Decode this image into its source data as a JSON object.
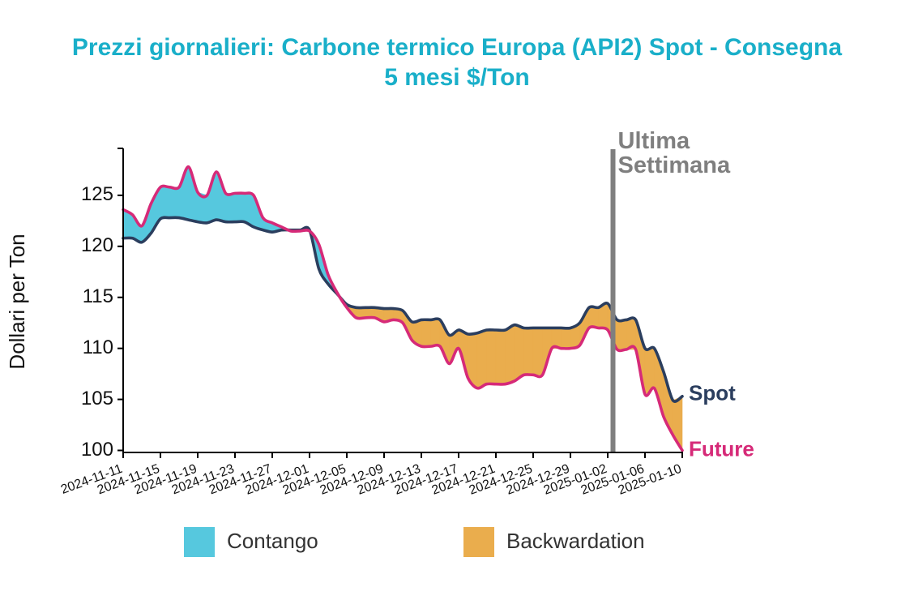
{
  "chart_data": {
    "type": "area",
    "title_lines": [
      "Prezzi giornalieri: Carbone termico Europa (API2) Spot - Consegna",
      "5 mesi $/Ton"
    ],
    "ylabel": "Dollari per Ton",
    "xlabel": "",
    "ylim": [
      99.8,
      129.6
    ],
    "yticks": [
      100,
      105,
      110,
      115,
      120,
      125
    ],
    "xticks": [
      "2024-11-11",
      "2024-11-15",
      "2024-11-19",
      "2024-11-23",
      "2024-11-27",
      "2024-12-01",
      "2024-12-05",
      "2024-12-09",
      "2024-12-13",
      "2024-12-17",
      "2024-12-21",
      "2024-12-25",
      "2024-12-29",
      "2025-01-02",
      "2025-01-06",
      "2025-01-10"
    ],
    "x": [
      "2024-11-11",
      "2024-11-12",
      "2024-11-13",
      "2024-11-14",
      "2024-11-15",
      "2024-11-16",
      "2024-11-17",
      "2024-11-18",
      "2024-11-19",
      "2024-11-20",
      "2024-11-21",
      "2024-11-22",
      "2024-11-23",
      "2024-11-24",
      "2024-11-25",
      "2024-11-26",
      "2024-11-27",
      "2024-11-28",
      "2024-11-29",
      "2024-11-30",
      "2024-12-01",
      "2024-12-02",
      "2024-12-03",
      "2024-12-04",
      "2024-12-05",
      "2024-12-06",
      "2024-12-07",
      "2024-12-08",
      "2024-12-09",
      "2024-12-10",
      "2024-12-11",
      "2024-12-12",
      "2024-12-13",
      "2024-12-14",
      "2024-12-15",
      "2024-12-16",
      "2024-12-17",
      "2024-12-18",
      "2024-12-19",
      "2024-12-20",
      "2024-12-21",
      "2024-12-22",
      "2024-12-23",
      "2024-12-24",
      "2024-12-25",
      "2024-12-26",
      "2024-12-27",
      "2024-12-28",
      "2024-12-29",
      "2024-12-30",
      "2024-12-31",
      "2025-01-01",
      "2025-01-02",
      "2025-01-03",
      "2025-01-04",
      "2025-01-05",
      "2025-01-06",
      "2025-01-07",
      "2025-01-08",
      "2025-01-09",
      "2025-01-10"
    ],
    "series": [
      {
        "name": "Spot",
        "color": "#2b3e5e",
        "values": [
          120.8,
          120.8,
          120.4,
          121.3,
          122.7,
          122.8,
          122.8,
          122.6,
          122.4,
          122.3,
          122.6,
          122.4,
          122.4,
          122.4,
          121.9,
          121.6,
          121.4,
          121.6,
          121.6,
          121.6,
          121.6,
          117.8,
          116.3,
          115.3,
          114.3,
          114.0,
          114.0,
          114.0,
          113.9,
          113.9,
          113.7,
          112.6,
          112.8,
          112.8,
          112.8,
          111.3,
          111.8,
          111.4,
          111.5,
          111.8,
          111.8,
          111.8,
          112.3,
          112.0,
          112.0,
          112.0,
          112.0,
          112.0,
          112.0,
          112.5,
          114.0,
          114.0,
          114.4,
          112.8,
          112.8,
          112.8,
          110.0,
          110.0,
          107.7,
          104.9,
          105.3
        ]
      },
      {
        "name": "Future",
        "color": "#d62a78",
        "values": [
          123.6,
          123.1,
          122.0,
          124.2,
          125.8,
          125.8,
          125.8,
          127.8,
          125.3,
          125.0,
          127.3,
          125.2,
          125.2,
          125.2,
          125.0,
          122.8,
          122.3,
          121.9,
          121.5,
          121.5,
          121.5,
          120.2,
          117.2,
          115.4,
          114.0,
          113.0,
          113.0,
          113.0,
          112.6,
          112.8,
          112.5,
          110.8,
          110.2,
          110.2,
          110.2,
          108.5,
          110.0,
          107.1,
          106.1,
          106.5,
          106.5,
          106.5,
          106.8,
          107.4,
          107.4,
          107.4,
          110.0,
          110.0,
          110.0,
          110.3,
          112.0,
          112.0,
          111.8,
          109.9,
          109.9,
          109.9,
          105.5,
          106.1,
          103.3,
          101.5,
          100.0
        ]
      }
    ],
    "fill_legend": [
      {
        "name": "Contango",
        "color": "#56c8de"
      },
      {
        "name": "Backwardation",
        "color": "#eaad4d"
      }
    ],
    "annotation": {
      "date": "2025-01-03",
      "lines": [
        "Ultima",
        "Settimana"
      ],
      "color": "#7f7f7f"
    },
    "grid": false
  }
}
